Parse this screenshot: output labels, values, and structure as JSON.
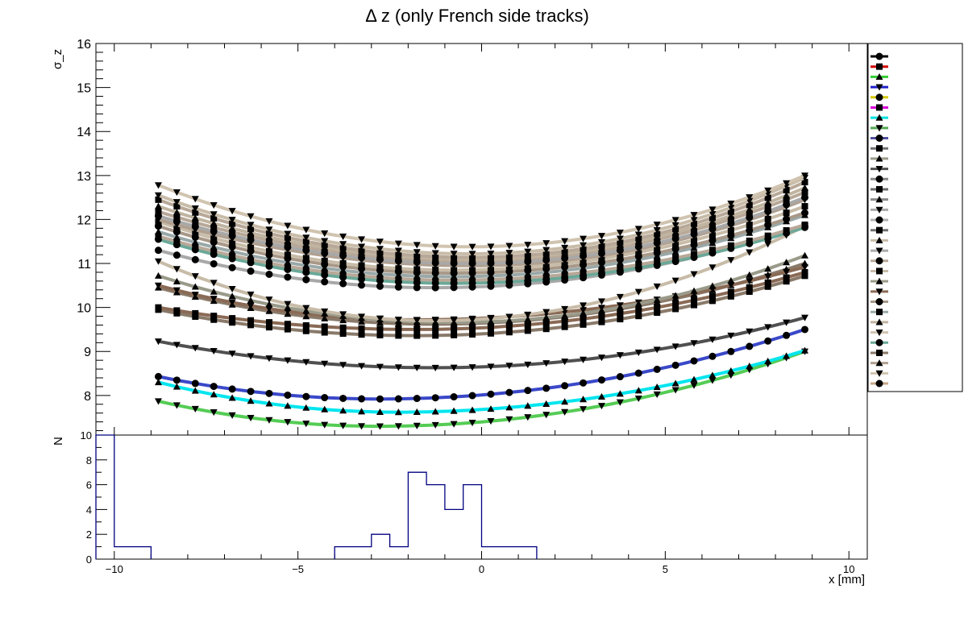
{
  "chart_data": [
    {
      "type": "line",
      "title": "Δ z (only French side tracks)",
      "ylabel": "σ_z",
      "xlabel": "",
      "xlim": [
        -10.5,
        10.5
      ],
      "ylim": [
        7.1,
        16
      ],
      "y_ticks": [
        8,
        9,
        10,
        11,
        12,
        13,
        14,
        15,
        16
      ],
      "grid": false,
      "legend_position": "right",
      "legend_entry_count": 33,
      "curve_x_range": [
        -8.8,
        8.8
      ],
      "series": [
        {
          "marker": "triangle-down",
          "color": "#55cc55",
          "min_x": -2.8,
          "min_y": 7.3,
          "left_y": 7.87,
          "right_y": 9.0
        },
        {
          "marker": "triangle-up",
          "color": "#00e5ee",
          "min_x": -2.3,
          "min_y": 7.62,
          "left_y": 8.3,
          "right_y": 9.02
        },
        {
          "marker": "circle",
          "color": "#3a48c8",
          "min_x": -2.8,
          "min_y": 7.92,
          "left_y": 8.43,
          "right_y": 9.5
        },
        {
          "marker": "triangle-down",
          "color": "#505050",
          "min_x": -1.3,
          "min_y": 8.63,
          "left_y": 9.23,
          "right_y": 9.77
        },
        {
          "marker": "square",
          "color": "#8a7a6a",
          "min_x": -1.8,
          "min_y": 9.36,
          "left_y": 9.95,
          "right_y": 10.72
        },
        {
          "marker": "square",
          "color": "#8a6a55",
          "min_x": -1.8,
          "min_y": 9.5,
          "left_y": 10.0,
          "right_y": 10.8
        },
        {
          "marker": "triangle-up",
          "color": "#8a7a6a",
          "min_x": -1.3,
          "min_y": 9.62,
          "left_y": 10.45,
          "right_y": 11.0
        },
        {
          "marker": "triangle-down",
          "color": "#8a6a55",
          "min_x": -1.8,
          "min_y": 9.72,
          "left_y": 10.5,
          "right_y": 10.92
        },
        {
          "marker": "triangle-up",
          "color": "#9a9a8a",
          "min_x": -0.8,
          "min_y": 9.66,
          "left_y": 10.72,
          "right_y": 11.18
        },
        {
          "marker": "triangle-down",
          "color": "#c8bca8",
          "min_x": -1.3,
          "min_y": 9.7,
          "left_y": 11.05,
          "right_y": 11.85
        },
        {
          "marker": "circle",
          "color": "#a8a8a8",
          "min_x": -1.3,
          "min_y": 10.45,
          "left_y": 11.3,
          "right_y": 11.85
        },
        {
          "marker": "circle",
          "color": "#6aa898",
          "min_x": -0.8,
          "min_y": 10.55,
          "left_y": 11.55,
          "right_y": 11.82
        },
        {
          "marker": "square",
          "color": "#b8a898",
          "min_x": -0.8,
          "min_y": 10.62,
          "left_y": 11.62,
          "right_y": 11.88
        },
        {
          "marker": "triangle-up",
          "color": "#9aa8a8",
          "min_x": -0.8,
          "min_y": 10.7,
          "left_y": 11.72,
          "right_y": 12.1
        },
        {
          "marker": "circle",
          "color": "#a89888",
          "min_x": -0.8,
          "min_y": 10.78,
          "left_y": 11.85,
          "right_y": 12.15
        },
        {
          "marker": "square",
          "color": "#c8bca8",
          "min_x": -0.8,
          "min_y": 10.85,
          "left_y": 11.95,
          "right_y": 12.3
        },
        {
          "marker": "triangle-down",
          "color": "#b0a090",
          "min_x": -0.3,
          "min_y": 10.95,
          "left_y": 12.0,
          "right_y": 12.45
        },
        {
          "marker": "circle",
          "color": "#a8a8a8",
          "min_x": -0.3,
          "min_y": 11.0,
          "left_y": 12.08,
          "right_y": 12.5
        },
        {
          "marker": "square",
          "color": "#b8a898",
          "min_x": -0.3,
          "min_y": 11.06,
          "left_y": 12.18,
          "right_y": 12.62
        },
        {
          "marker": "triangle-up",
          "color": "#c0b4a0",
          "min_x": -0.3,
          "min_y": 11.1,
          "left_y": 12.3,
          "right_y": 12.72
        },
        {
          "marker": "square",
          "color": "#b8a898",
          "min_x": -0.3,
          "min_y": 11.14,
          "left_y": 12.45,
          "right_y": 12.85
        },
        {
          "marker": "triangle-down",
          "color": "#c8bca8",
          "min_x": -0.3,
          "min_y": 11.22,
          "left_y": 12.55,
          "right_y": 12.95
        },
        {
          "marker": "triangle-down",
          "color": "#d0c4b0",
          "min_x": -0.3,
          "min_y": 11.38,
          "left_y": 12.78,
          "right_y": 13.0
        }
      ]
    },
    {
      "type": "histogram",
      "title": "",
      "xlabel": "x [mm]",
      "ylabel": "N",
      "xlim": [
        -10.5,
        10.5
      ],
      "ylim": [
        0,
        10
      ],
      "x_ticks": [
        -10,
        -5,
        0,
        5,
        10
      ],
      "y_ticks": [
        0,
        2,
        4,
        6,
        8,
        10
      ],
      "color": "#000080",
      "bins": [
        {
          "x0": -10.5,
          "x1": -10.0,
          "count": 10
        },
        {
          "x0": -10.0,
          "x1": -9.0,
          "count": 1
        },
        {
          "x0": -4.0,
          "x1": -3.5,
          "count": 1
        },
        {
          "x0": -3.5,
          "x1": -3.0,
          "count": 1
        },
        {
          "x0": -3.0,
          "x1": -2.5,
          "count": 2
        },
        {
          "x0": -2.5,
          "x1": -2.0,
          "count": 1
        },
        {
          "x0": -2.0,
          "x1": -1.5,
          "count": 7
        },
        {
          "x0": -1.5,
          "x1": -1.0,
          "count": 6
        },
        {
          "x0": -1.0,
          "x1": -0.5,
          "count": 4
        },
        {
          "x0": -0.5,
          "x1": 0.0,
          "count": 6
        },
        {
          "x0": 0.0,
          "x1": 0.5,
          "count": 1
        },
        {
          "x0": 0.5,
          "x1": 1.0,
          "count": 1
        },
        {
          "x0": 1.0,
          "x1": 1.5,
          "count": 1
        }
      ]
    }
  ]
}
